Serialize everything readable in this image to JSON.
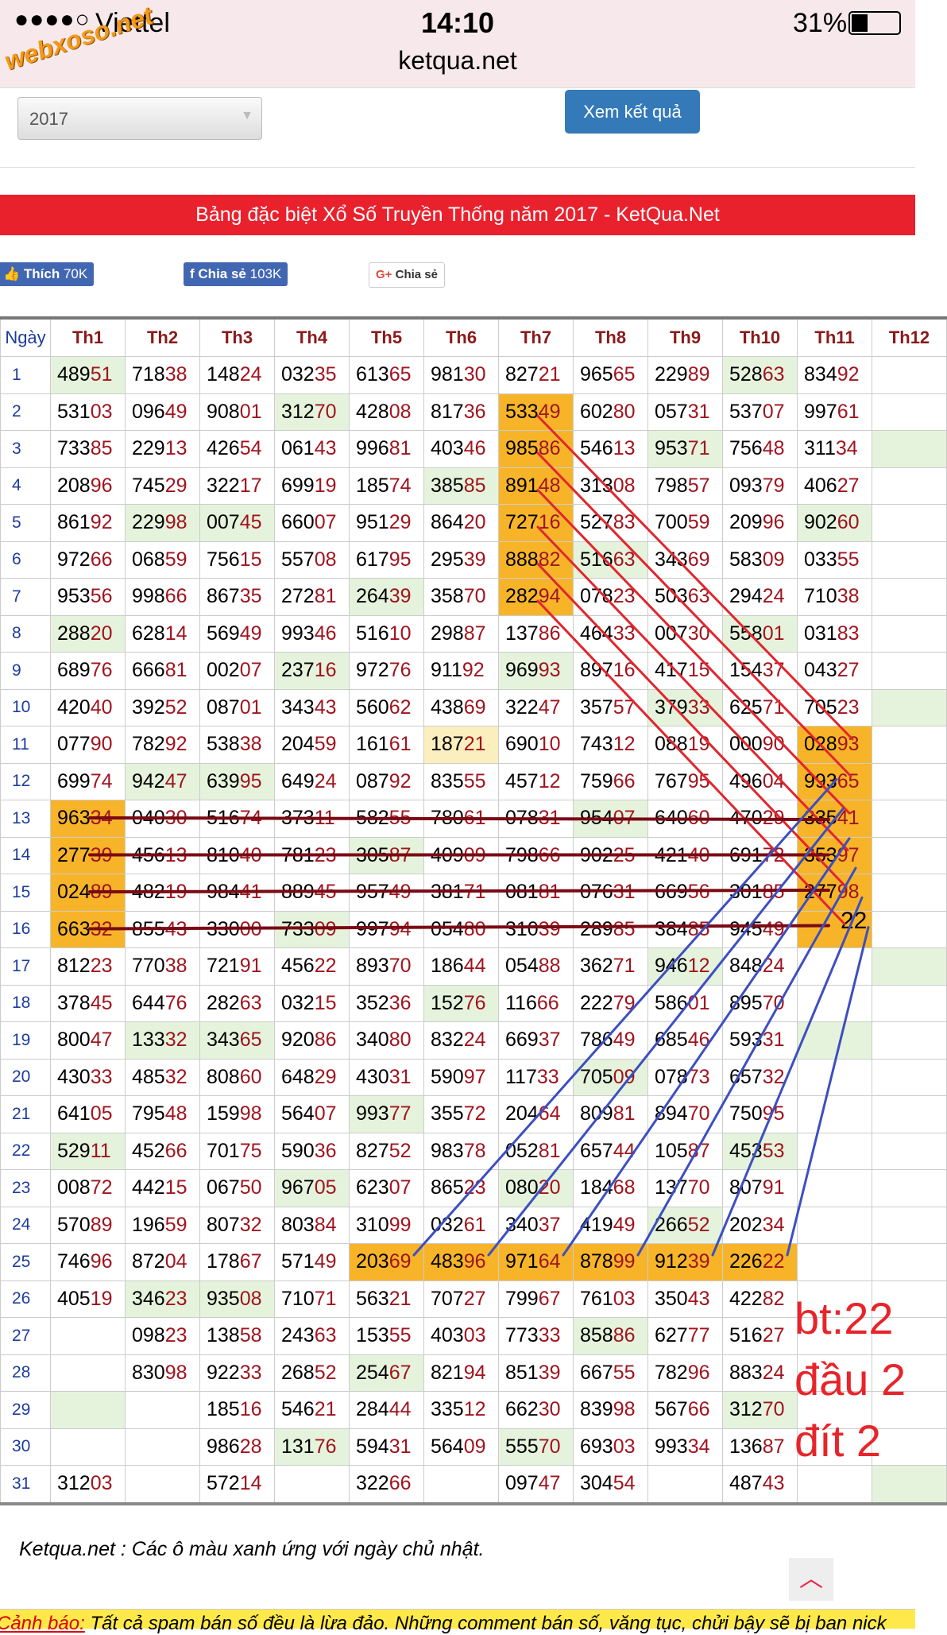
{
  "status_bar": {
    "carrier": "Viettel",
    "time": "14:10",
    "battery": "31%",
    "url": "ketqua.net"
  },
  "watermark": "webxoso.net",
  "controls": {
    "year": "2017",
    "button": "Xem kết quả"
  },
  "banner": "Bảng đặc biệt Xổ Số Truyền Thống năm 2017 - KetQua.Net",
  "social": {
    "like": "Thích",
    "like_count": "70K",
    "share": "Chia sẻ",
    "share_count": "103K",
    "gplus": "Chia sẻ"
  },
  "table": {
    "header": [
      "Ngày",
      "Th1",
      "Th2",
      "Th3",
      "Th4",
      "Th5",
      "Th6",
      "Th7",
      "Th8",
      "Th9",
      "Th10",
      "Th11",
      "Th12"
    ],
    "rows": [
      [
        "1",
        "48951",
        "71838",
        "14824",
        "03235",
        "61365",
        "98130",
        "82721",
        "96565",
        "22989",
        "52863",
        "83492",
        null
      ],
      [
        "2",
        "53103",
        "09649",
        "90801",
        "31270",
        "42808",
        "81736",
        "53349",
        "60280",
        "05731",
        "53707",
        "99761",
        null
      ],
      [
        "3",
        "73385",
        "22913",
        "42654",
        "06143",
        "99681",
        "40346",
        "98586",
        "54613",
        "95371",
        "75648",
        "31134",
        null
      ],
      [
        "4",
        "20896",
        "74529",
        "32217",
        "69919",
        "18574",
        "38585",
        "89148",
        "31308",
        "79857",
        "09379",
        "40627",
        null
      ],
      [
        "5",
        "86192",
        "22998",
        "00745",
        "66007",
        "95129",
        "86420",
        "72716",
        "52783",
        "70059",
        "20996",
        "90260",
        null
      ],
      [
        "6",
        "97266",
        "06859",
        "75615",
        "55708",
        "61795",
        "29539",
        "88882",
        "51663",
        "34369",
        "58309",
        "03355",
        null
      ],
      [
        "7",
        "95356",
        "99866",
        "86735",
        "27281",
        "26439",
        "35870",
        "28294",
        "07823",
        "50363",
        "29424",
        "71038",
        null
      ],
      [
        "8",
        "28820",
        "62814",
        "56949",
        "99346",
        "51610",
        "29887",
        "13786",
        "46433",
        "00730",
        "55801",
        "03183",
        null
      ],
      [
        "9",
        "68976",
        "66681",
        "00207",
        "23716",
        "97276",
        "91192",
        "96993",
        "89716",
        "41715",
        "15437",
        "04327",
        null
      ],
      [
        "10",
        "42040",
        "39252",
        "08701",
        "34343",
        "56062",
        "43869",
        "32247",
        "35757",
        "37933",
        "62571",
        "70523",
        null
      ],
      [
        "11",
        "07790",
        "78292",
        "53838",
        "20459",
        "16161",
        "18721",
        "69010",
        "74312",
        "08819",
        "00090",
        "02893",
        null
      ],
      [
        "12",
        "69974",
        "94247",
        "63995",
        "64924",
        "08792",
        "83555",
        "45712",
        "75966",
        "76795",
        "49604",
        "99365",
        null
      ],
      [
        "13",
        "96334",
        "04030",
        "51674",
        "37311",
        "58255",
        "78061",
        "07831",
        "95407",
        "64060",
        "47029",
        "33541",
        null
      ],
      [
        "14",
        "27739",
        "45613",
        "81040",
        "78123",
        "30587",
        "40909",
        "79866",
        "90225",
        "42140",
        "69172",
        "35397",
        null
      ],
      [
        "15",
        "02489",
        "48219",
        "98441",
        "88945",
        "95749",
        "38171",
        "08181",
        "07631",
        "66956",
        "30185",
        "27798",
        null
      ],
      [
        "16",
        "66332",
        "85543",
        "33000",
        "73309",
        "99794",
        "05480",
        "31039",
        "28985",
        "38485",
        "94549",
        null,
        null
      ],
      [
        "17",
        "81223",
        "77038",
        "72191",
        "45622",
        "89370",
        "18644",
        "05488",
        "36271",
        "94612",
        "84824",
        null,
        null
      ],
      [
        "18",
        "37845",
        "64476",
        "28263",
        "03215",
        "35236",
        "15276",
        "11666",
        "22279",
        "58601",
        "89570",
        null,
        null
      ],
      [
        "19",
        "80047",
        "13332",
        "34365",
        "92086",
        "34080",
        "83224",
        "66937",
        "78649",
        "68546",
        "59331",
        null,
        null
      ],
      [
        "20",
        "43033",
        "48532",
        "80860",
        "64829",
        "43031",
        "59097",
        "11733",
        "70509",
        "07873",
        "65732",
        null,
        null
      ],
      [
        "21",
        "64105",
        "79548",
        "15998",
        "56407",
        "99377",
        "35572",
        "20464",
        "80981",
        "89470",
        "75095",
        null,
        null
      ],
      [
        "22",
        "52911",
        "45266",
        "70175",
        "59036",
        "82752",
        "98378",
        "05281",
        "65744",
        "10587",
        "45353",
        null,
        null
      ],
      [
        "23",
        "00872",
        "44215",
        "06750",
        "96705",
        "62307",
        "86523",
        "08020",
        "18468",
        "13770",
        "80791",
        null,
        null
      ],
      [
        "24",
        "57089",
        "19659",
        "80732",
        "80384",
        "31099",
        "03261",
        "34037",
        "41949",
        "26652",
        "20234",
        null,
        null
      ],
      [
        "25",
        "74696",
        "87204",
        "17867",
        "57149",
        "20369",
        "48396",
        "97164",
        "87899",
        "91239",
        "22622",
        null,
        null
      ],
      [
        "26",
        "40519",
        "34623",
        "93508",
        "71071",
        "56321",
        "70727",
        "79967",
        "76103",
        "35043",
        "42282",
        null,
        null
      ],
      [
        "27",
        null,
        "09823",
        "13858",
        "24363",
        "15355",
        "40303",
        "77333",
        "85886",
        "62777",
        "51627",
        null,
        null
      ],
      [
        "28",
        null,
        "83098",
        "92233",
        "26852",
        "25467",
        "82194",
        "85139",
        "66755",
        "78296",
        "88324",
        null,
        null
      ],
      [
        "29",
        null,
        null,
        "18516",
        "54621",
        "28444",
        "33512",
        "66230",
        "83998",
        "56766",
        "31270",
        null,
        null
      ],
      [
        "30",
        null,
        null,
        "98628",
        "13176",
        "59431",
        "56409",
        "55570",
        "69303",
        "99334",
        "13687",
        null,
        null
      ],
      [
        "31",
        "31203",
        null,
        "57214",
        null,
        "32266",
        null,
        "09747",
        "30454",
        null,
        "48743",
        null,
        null
      ]
    ]
  },
  "annotations": {
    "cell_mark": "22",
    "lines": [
      "bt:22",
      "đầu 2",
      "đít 2"
    ]
  },
  "footer": {
    "note": "Ketqua.net : Các ô màu xanh ứng với ngày chủ nhật.",
    "warning_label": "Cảnh báo:",
    "warning": "Tất cả spam bán số đều là lừa đảo. Những comment bán số, văng tục, chửi bậy sẽ bị ban nick"
  }
}
